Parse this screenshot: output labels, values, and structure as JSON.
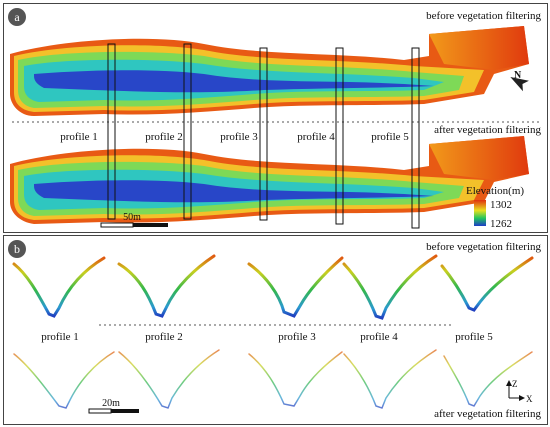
{
  "panel_a": {
    "badge": "a",
    "top_label": "before vegetation filtering",
    "mid_label": "after vegetation filtering",
    "profiles": [
      "profile 1",
      "profile 2",
      "profile 3",
      "profile 4",
      "profile 5"
    ],
    "scale_label": "50m",
    "legend": {
      "title": "Elevation(m)",
      "max": "1302",
      "min": "1262"
    },
    "north_arrow": "N"
  },
  "panel_b": {
    "badge": "b",
    "top_label": "before vegetation filtering",
    "bottom_label": "after vegetation filtering",
    "profiles": [
      "profile 1",
      "profile 2",
      "profile 3",
      "profile 4",
      "profile 5"
    ],
    "scale_label": "20m",
    "axis_z": "Z",
    "axis_x": "X"
  },
  "colors": {
    "ramp_low": "#1e3cc8",
    "ramp_mid": "#22c55e",
    "ramp_high": "#e03010",
    "frame": "#444444"
  }
}
